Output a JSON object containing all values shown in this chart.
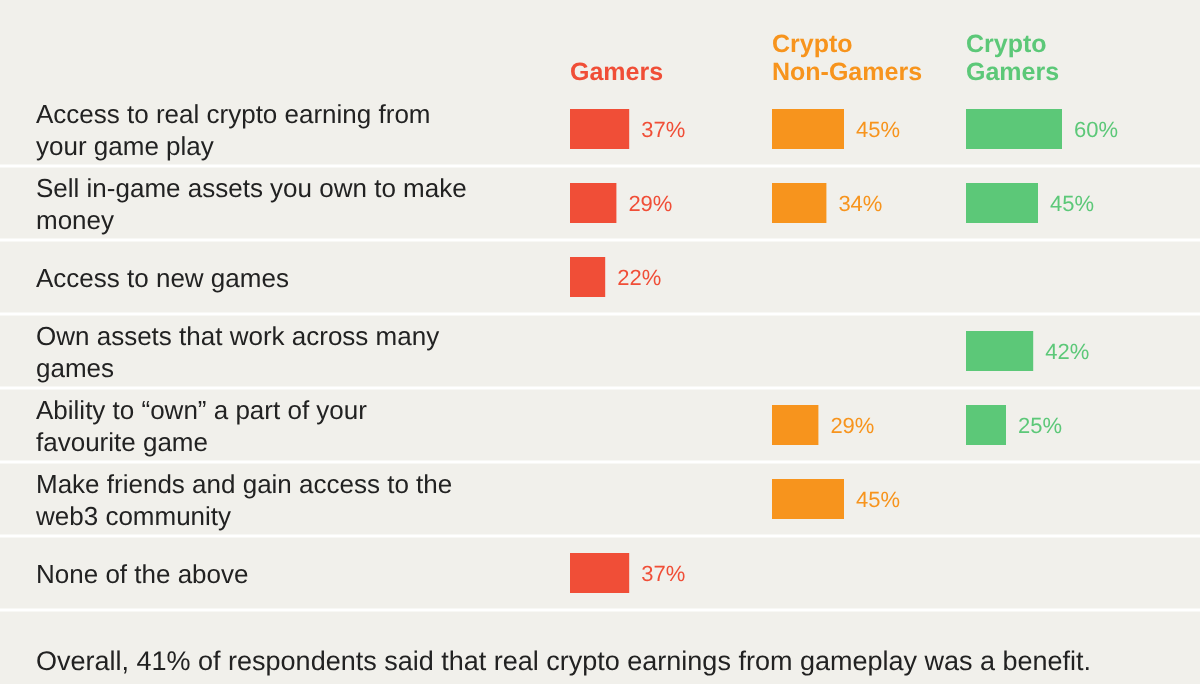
{
  "chart_data": [
    {
      "type": "bar",
      "orientation": "horizontal",
      "grid": true,
      "categories": [
        "Access to real crypto earning  from your game play",
        "Sell in-game assets you own to make money",
        "Access to new games",
        "Own assets that work across many games",
        "Ability to “own” a part of your favourite game",
        "Make friends and gain access to the web3 community",
        "None of the above"
      ],
      "series": [
        {
          "name": "Gamers",
          "color": "#f04e37",
          "values": [
            37,
            29,
            22,
            null,
            null,
            null,
            37
          ],
          "value_labels": [
            "37%",
            "29%",
            "22%",
            null,
            null,
            null,
            "37%"
          ]
        }
      ],
      "annotations": [
        "Overall, 41% of respondents said that real crypto earnings from gameplay was a benefit."
      ]
    },
    {
      "type": "bar",
      "orientation": "horizontal",
      "categories": [
        null,
        null,
        null,
        null,
        null,
        null,
        null
      ],
      "series": [
        {
          "name": "Crypto Non-Gamers",
          "color": "#f7941d",
          "values": [
            45,
            34,
            null,
            null,
            29,
            45,
            null
          ],
          "value_labels": [
            "45%",
            "34%",
            null,
            null,
            "29%",
            "45%",
            null
          ]
        }
      ]
    },
    {
      "type": "bar",
      "orientation": "horizontal",
      "categories": [
        null,
        null,
        null,
        null,
        null,
        null,
        null
      ],
      "series": [
        {
          "name": "Crypto Gamers",
          "color": "#5cc878",
          "values": [
            60,
            45,
            null,
            42,
            25,
            null,
            null
          ],
          "value_labels": [
            "60%",
            "45%",
            null,
            "42%",
            "25%",
            null,
            null
          ]
        }
      ]
    }
  ]
}
